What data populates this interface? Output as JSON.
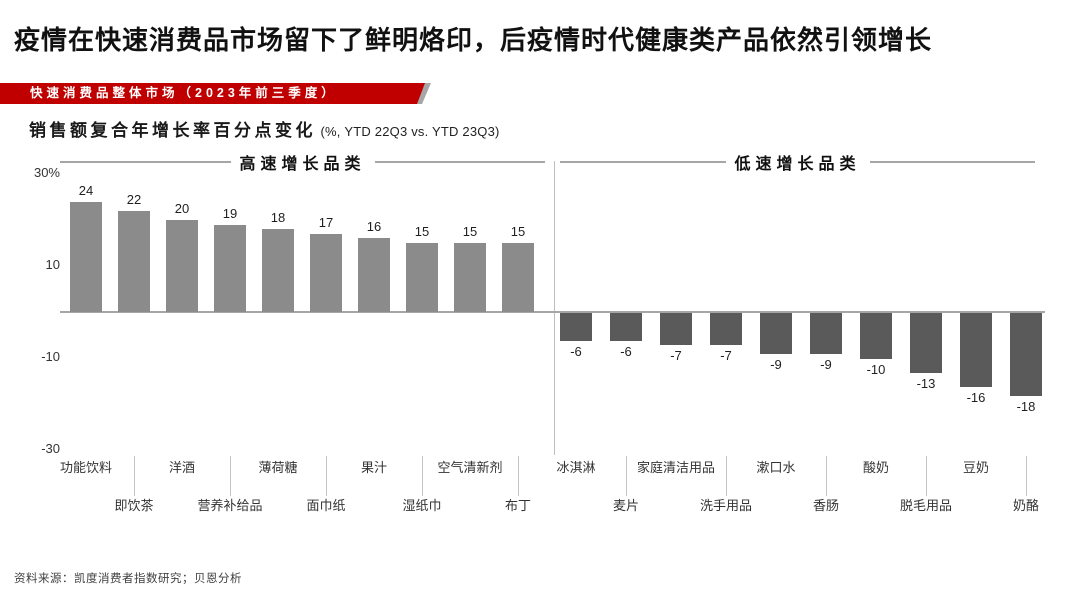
{
  "header": {
    "title": "疫情在快速消费品市场留下了鲜明烙印，后疫情时代健康类产品依然引领增长",
    "banner": "快速消费品整体市场（2023年前三季度）"
  },
  "chart": {
    "title_bold": "销售额复合年增长率百分点变化",
    "title_note": "(%, YTD 22Q3 vs. YTD 23Q3)"
  },
  "chart_data": {
    "type": "bar",
    "title": "销售额复合年增长率百分点变化 (%, YTD 22Q3 vs. YTD 23Q3)",
    "xlabel": "",
    "ylabel": "销售额复合年增长率百分点变化 (%)",
    "ylim": [
      -30,
      30
    ],
    "grid": false,
    "yticks": [
      {
        "value": 30,
        "label": "30%"
      },
      {
        "value": 10,
        "label": "10"
      },
      {
        "value": -10,
        "label": "-10"
      },
      {
        "value": -30,
        "label": "-30"
      }
    ],
    "sections": [
      {
        "label": "高速增长品类",
        "categories": [
          "功能饮料",
          "即饮茶",
          "洋酒",
          "营养补给品",
          "薄荷糖",
          "面巾纸",
          "果汁",
          "湿纸巾",
          "空气清新剂",
          "布丁"
        ],
        "values": [
          24,
          22,
          20,
          19,
          18,
          17,
          16,
          15,
          15,
          15
        ]
      },
      {
        "label": "低速增长品类",
        "categories": [
          "冰淇淋",
          "麦片",
          "家庭清洁用品",
          "洗手用品",
          "漱口水",
          "香肠",
          "酸奶",
          "脱毛用品",
          "豆奶",
          "奶酪"
        ],
        "values": [
          -6,
          -6,
          -7,
          -7,
          -9,
          -9,
          -10,
          -13,
          -16,
          -18
        ]
      }
    ],
    "colors": {
      "positive_bar": "#8B8B8B",
      "negative_bar": "#5A5A5A",
      "accent": "#C00000"
    }
  },
  "footer": {
    "source": "资料来源：凯度消费者指数研究；贝恩分析"
  }
}
